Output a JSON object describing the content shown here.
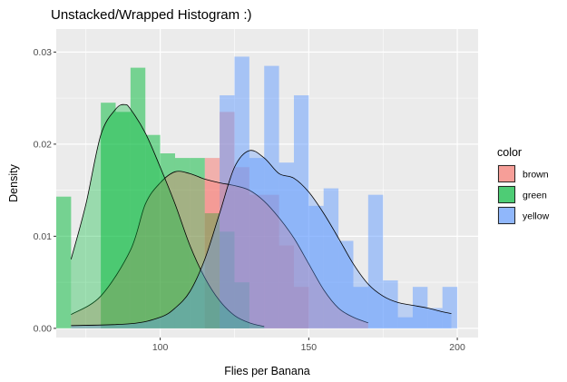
{
  "chart_data": {
    "type": "histogram",
    "title": "Unstacked/Wrapped Histogram :)",
    "xlabel": "Flies per Banana",
    "ylabel": "Density",
    "xlim": [
      65,
      207
    ],
    "ylim": [
      -0.001,
      0.0325
    ],
    "x_ticks": [
      100,
      150,
      200
    ],
    "y_ticks": [
      0.0,
      0.01,
      0.02,
      0.03
    ],
    "y_tick_labels": [
      "0.00",
      "0.01",
      "0.02",
      "0.03"
    ],
    "background": "#ebebeb",
    "grid": true,
    "legend": {
      "title": "color",
      "position": "right"
    },
    "series": [
      {
        "name": "brown",
        "color": "#F8766D",
        "bins": [
          {
            "x0": 115,
            "x1": 120,
            "y": 0.0185
          },
          {
            "x0": 120,
            "x1": 125,
            "y": 0.0235
          },
          {
            "x0": 125,
            "x1": 130,
            "y": 0.0175
          },
          {
            "x0": 130,
            "x1": 135,
            "y": 0.0145
          },
          {
            "x0": 135,
            "x1": 140,
            "y": 0.0145
          },
          {
            "x0": 140,
            "x1": 145,
            "y": 0.009
          },
          {
            "x0": 145,
            "x1": 150,
            "y": 0.0045
          }
        ],
        "density": [
          [
            70,
            0.0015
          ],
          [
            80,
            0.0035
          ],
          [
            90,
            0.0085
          ],
          [
            95,
            0.0135
          ],
          [
            100,
            0.0158
          ],
          [
            105,
            0.017
          ],
          [
            110,
            0.0168
          ],
          [
            115,
            0.0162
          ],
          [
            120,
            0.0158
          ],
          [
            125,
            0.0155
          ],
          [
            130,
            0.015
          ],
          [
            135,
            0.0138
          ],
          [
            140,
            0.012
          ],
          [
            145,
            0.0098
          ],
          [
            150,
            0.007
          ],
          [
            155,
            0.0042
          ],
          [
            160,
            0.0022
          ],
          [
            165,
            0.0012
          ],
          [
            170,
            0.0006
          ]
        ]
      },
      {
        "name": "green",
        "color": "#00BA38",
        "bins": [
          {
            "x0": 65,
            "x1": 70,
            "y": 0.0143
          },
          {
            "x0": 80,
            "x1": 85,
            "y": 0.0245
          },
          {
            "x0": 85,
            "x1": 90,
            "y": 0.0235
          },
          {
            "x0": 90,
            "x1": 95,
            "y": 0.0283
          },
          {
            "x0": 95,
            "x1": 100,
            "y": 0.021
          },
          {
            "x0": 100,
            "x1": 105,
            "y": 0.019
          },
          {
            "x0": 105,
            "x1": 110,
            "y": 0.0185
          },
          {
            "x0": 110,
            "x1": 115,
            "y": 0.0185
          },
          {
            "x0": 115,
            "x1": 120,
            "y": 0.0125
          },
          {
            "x0": 120,
            "x1": 125,
            "y": 0.0105
          },
          {
            "x0": 125,
            "x1": 130,
            "y": 0.005
          }
        ],
        "density": [
          [
            70,
            0.0075
          ],
          [
            75,
            0.0135
          ],
          [
            80,
            0.021
          ],
          [
            85,
            0.0238
          ],
          [
            88,
            0.0243
          ],
          [
            90,
            0.0238
          ],
          [
            95,
            0.0212
          ],
          [
            100,
            0.0175
          ],
          [
            105,
            0.0135
          ],
          [
            110,
            0.009
          ],
          [
            115,
            0.0055
          ],
          [
            120,
            0.003
          ],
          [
            125,
            0.0014
          ],
          [
            130,
            0.0006
          ],
          [
            135,
            0.0002
          ]
        ]
      },
      {
        "name": "yellow",
        "color": "#619CFF",
        "bins": [
          {
            "x0": 120,
            "x1": 125,
            "y": 0.0253
          },
          {
            "x0": 125,
            "x1": 130,
            "y": 0.0295
          },
          {
            "x0": 130,
            "x1": 135,
            "y": 0.0185
          },
          {
            "x0": 135,
            "x1": 140,
            "y": 0.0285
          },
          {
            "x0": 140,
            "x1": 145,
            "y": 0.018
          },
          {
            "x0": 145,
            "x1": 150,
            "y": 0.0253
          },
          {
            "x0": 150,
            "x1": 155,
            "y": 0.0133
          },
          {
            "x0": 155,
            "x1": 160,
            "y": 0.0152
          },
          {
            "x0": 160,
            "x1": 165,
            "y": 0.0095
          },
          {
            "x0": 165,
            "x1": 170,
            "y": 0.0045
          },
          {
            "x0": 170,
            "x1": 175,
            "y": 0.0145
          },
          {
            "x0": 175,
            "x1": 180,
            "y": 0.0052
          },
          {
            "x0": 180,
            "x1": 185,
            "y": 0.0012
          },
          {
            "x0": 185,
            "x1": 190,
            "y": 0.0045
          },
          {
            "x0": 190,
            "x1": 195,
            "y": 0.0022
          },
          {
            "x0": 195,
            "x1": 200,
            "y": 0.0045
          }
        ],
        "density": [
          [
            70,
            0.0003
          ],
          [
            90,
            0.0005
          ],
          [
            100,
            0.0012
          ],
          [
            105,
            0.0022
          ],
          [
            110,
            0.004
          ],
          [
            115,
            0.0075
          ],
          [
            120,
            0.0125
          ],
          [
            125,
            0.0175
          ],
          [
            130,
            0.0193
          ],
          [
            135,
            0.0185
          ],
          [
            140,
            0.0168
          ],
          [
            145,
            0.0163
          ],
          [
            150,
            0.0148
          ],
          [
            155,
            0.0125
          ],
          [
            160,
            0.0098
          ],
          [
            165,
            0.007
          ],
          [
            170,
            0.0048
          ],
          [
            175,
            0.0035
          ],
          [
            180,
            0.0028
          ],
          [
            185,
            0.0025
          ],
          [
            190,
            0.0022
          ],
          [
            195,
            0.0018
          ],
          [
            198,
            0.0016
          ]
        ]
      }
    ]
  }
}
